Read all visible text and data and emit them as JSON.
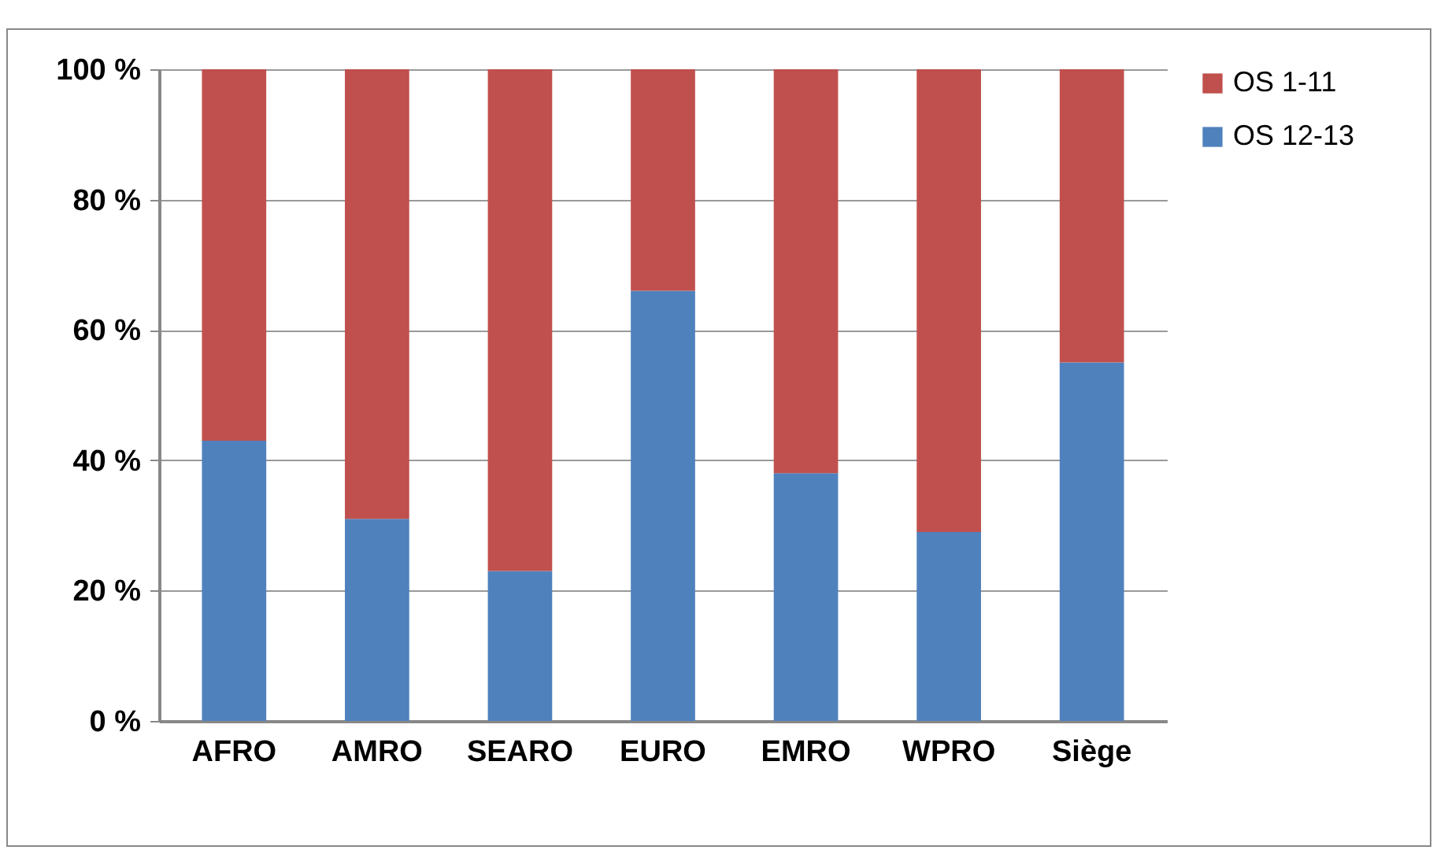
{
  "chart_data": {
    "type": "bar",
    "stacked": true,
    "categories": [
      "AFRO",
      "AMRO",
      "SEARO",
      "EURO",
      "EMRO",
      "WPRO",
      "Siège"
    ],
    "series": [
      {
        "name": "OS 12-13",
        "color": "#4f81bd",
        "values": [
          43,
          31,
          23,
          66,
          38,
          29,
          55
        ]
      },
      {
        "name": "OS 1-11",
        "color": "#c0504d",
        "values": [
          57,
          69,
          77,
          34,
          62,
          71,
          45
        ]
      }
    ],
    "ylim": [
      0,
      100
    ],
    "yticks": [
      {
        "value": 0,
        "label": "0 %"
      },
      {
        "value": 20,
        "label": "20 %"
      },
      {
        "value": 40,
        "label": "40 %"
      },
      {
        "value": 60,
        "label": "60 %"
      },
      {
        "value": 80,
        "label": "80 %"
      },
      {
        "value": 100,
        "label": "100 %"
      }
    ],
    "grid": "y",
    "legend": "right"
  }
}
